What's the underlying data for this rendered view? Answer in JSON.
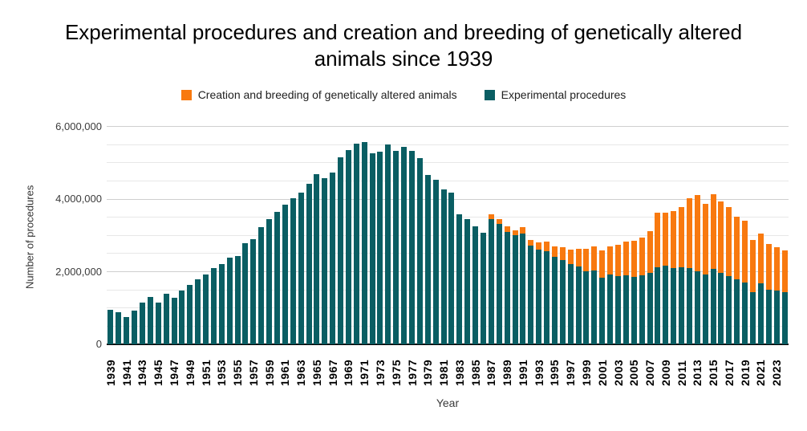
{
  "title": {
    "text": "Experimental procedures and creation and breeding of genetically altered animals since 1939"
  },
  "legend": [
    {
      "label": "Creation and breeding of genetically altered animals",
      "color": "#f8790f"
    },
    {
      "label": "Experimental procedures",
      "color": "#0a5e63"
    }
  ],
  "y_axis": {
    "title": "Number of procedures",
    "tick_labels": [
      "0",
      "2,000,000",
      "4,000,000",
      "6,000,000"
    ],
    "tick_values": [
      0,
      2000000,
      4000000,
      6000000
    ]
  },
  "x_axis": {
    "title": "Year",
    "label_every": 2,
    "first_label": "1939",
    "last_label": "2023"
  },
  "chart_data": {
    "type": "bar",
    "subtype": "stacked",
    "title": "Experimental procedures and creation and breeding of genetically altered animals since 1939",
    "xlabel": "Year",
    "ylabel": "Number of procedures",
    "ylim": [
      0,
      6000000
    ],
    "major_gridline_step": 2000000,
    "minor_gridline_step": 500000,
    "grid": true,
    "legend_position": "top",
    "categories": [
      1939,
      1940,
      1941,
      1942,
      1943,
      1944,
      1945,
      1946,
      1947,
      1948,
      1949,
      1950,
      1951,
      1952,
      1953,
      1954,
      1955,
      1956,
      1957,
      1958,
      1959,
      1960,
      1961,
      1962,
      1963,
      1964,
      1965,
      1966,
      1967,
      1968,
      1969,
      1970,
      1971,
      1972,
      1973,
      1974,
      1975,
      1976,
      1977,
      1978,
      1979,
      1980,
      1981,
      1982,
      1983,
      1984,
      1985,
      1986,
      1987,
      1988,
      1989,
      1990,
      1991,
      1992,
      1993,
      1994,
      1995,
      1996,
      1997,
      1998,
      1999,
      2000,
      2001,
      2002,
      2003,
      2004,
      2005,
      2006,
      2007,
      2008,
      2009,
      2010,
      2011,
      2012,
      2013,
      2014,
      2015,
      2016,
      2017,
      2018,
      2019,
      2020,
      2021,
      2022,
      2023,
      2024
    ],
    "series": [
      {
        "name": "Experimental procedures",
        "color": "#0a5e63",
        "values": [
          950000,
          890000,
          750000,
          920000,
          1140000,
          1310000,
          1140000,
          1390000,
          1280000,
          1480000,
          1630000,
          1780000,
          1930000,
          2110000,
          2200000,
          2390000,
          2440000,
          2780000,
          2900000,
          3220000,
          3450000,
          3650000,
          3850000,
          4020000,
          4180000,
          4430000,
          4690000,
          4570000,
          4720000,
          5150000,
          5350000,
          5520000,
          5570000,
          5260000,
          5310000,
          5500000,
          5320000,
          5430000,
          5320000,
          5130000,
          4670000,
          4520000,
          4270000,
          4180000,
          3570000,
          3450000,
          3250000,
          3070000,
          3450000,
          3310000,
          3100000,
          3000000,
          3060000,
          2720000,
          2600000,
          2570000,
          2400000,
          2330000,
          2210000,
          2140000,
          2010000,
          2040000,
          1830000,
          1930000,
          1870000,
          1900000,
          1860000,
          1890000,
          1960000,
          2130000,
          2170000,
          2100000,
          2130000,
          2090000,
          2010000,
          1920000,
          2070000,
          1970000,
          1870000,
          1780000,
          1710000,
          1430000,
          1690000,
          1510000,
          1470000,
          1440000
        ]
      },
      {
        "name": "Creation and breeding of genetically altered animals",
        "color": "#f8790f",
        "values": [
          0,
          0,
          0,
          0,
          0,
          0,
          0,
          0,
          0,
          0,
          0,
          0,
          0,
          0,
          0,
          0,
          0,
          0,
          0,
          0,
          0,
          0,
          0,
          0,
          0,
          0,
          0,
          0,
          0,
          0,
          0,
          0,
          0,
          0,
          0,
          0,
          0,
          0,
          0,
          0,
          0,
          0,
          0,
          0,
          0,
          0,
          0,
          0,
          140000,
          140000,
          150000,
          130000,
          160000,
          160000,
          200000,
          250000,
          300000,
          350000,
          400000,
          490000,
          620000,
          650000,
          760000,
          760000,
          870000,
          920000,
          990000,
          1050000,
          1150000,
          1500000,
          1450000,
          1580000,
          1660000,
          1940000,
          2100000,
          1950000,
          2070000,
          1960000,
          1920000,
          1740000,
          1690000,
          1450000,
          1370000,
          1250000,
          1200000,
          1150000
        ]
      }
    ]
  }
}
